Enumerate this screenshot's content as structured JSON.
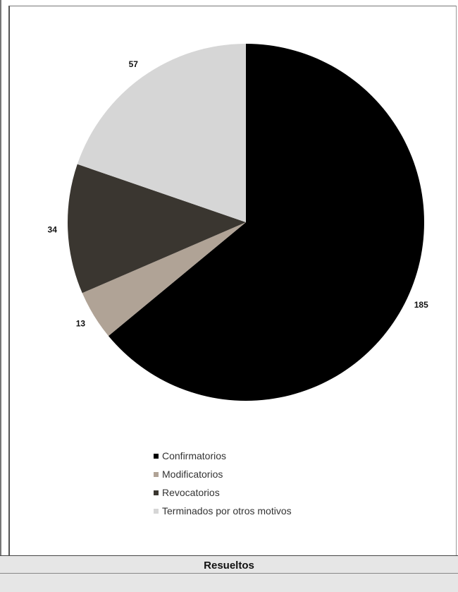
{
  "chart_data": {
    "type": "pie",
    "title": "",
    "categories": [
      "Confirmatorios",
      "Modificatorios",
      "Revocatorios",
      "Terminados por otros motivos"
    ],
    "values": [
      185,
      13,
      34,
      57
    ],
    "colors": [
      "#000000",
      "#b0a396",
      "#3a3630",
      "#d6d6d6"
    ],
    "data_labels": [
      "185",
      "13",
      "34",
      "57"
    ],
    "start": "12 o'clock",
    "direction": "clockwise",
    "legend_position": "bottom"
  },
  "footer": {
    "title": "Resueltos"
  }
}
